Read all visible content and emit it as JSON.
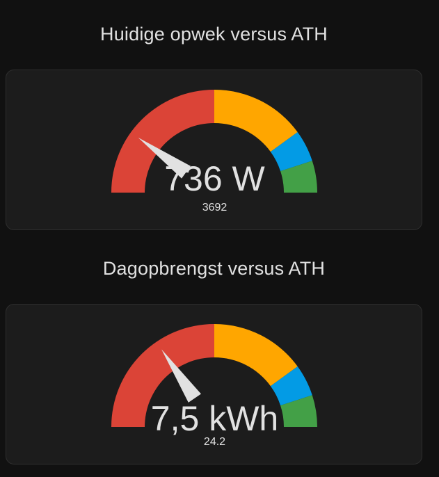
{
  "colors": {
    "background": "#111111",
    "card": "#1c1c1c",
    "red": "#db4437",
    "orange": "#ffa600",
    "blue": "#039be5",
    "green": "#43a047",
    "needle": "#e1e1e1"
  },
  "gauges": [
    {
      "title": "Huidige opwek versus ATH",
      "value_label": "736 W",
      "max_label": "3692",
      "value": 736,
      "max": 3692,
      "segments": [
        {
          "color_key": "red",
          "from": 0.0,
          "to": 0.5
        },
        {
          "color_key": "orange",
          "from": 0.5,
          "to": 0.8
        },
        {
          "color_key": "blue",
          "from": 0.8,
          "to": 0.9
        },
        {
          "color_key": "green",
          "from": 0.9,
          "to": 1.0
        }
      ]
    },
    {
      "title": "Dagopbrengst versus ATH",
      "value_label": "7,5 kWh",
      "max_label": "24.2",
      "value": 7.5,
      "max": 24.2,
      "segments": [
        {
          "color_key": "red",
          "from": 0.0,
          "to": 0.5
        },
        {
          "color_key": "orange",
          "from": 0.5,
          "to": 0.8
        },
        {
          "color_key": "blue",
          "from": 0.8,
          "to": 0.9
        },
        {
          "color_key": "green",
          "from": 0.9,
          "to": 1.0
        }
      ]
    }
  ]
}
